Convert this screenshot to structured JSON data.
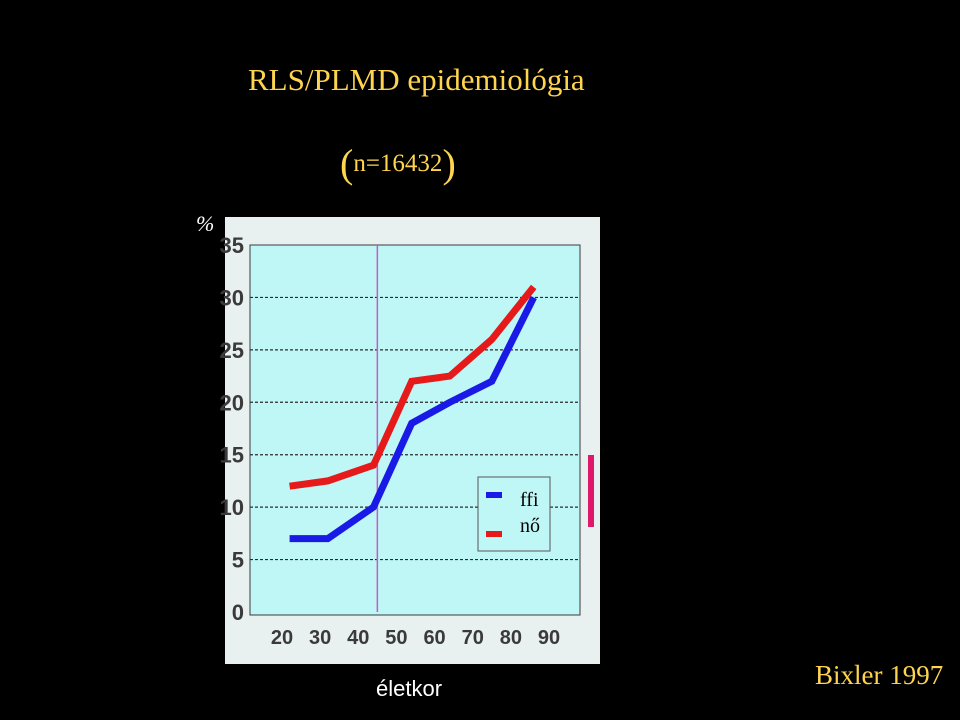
{
  "title": "RLS/PLMD epidemiológia",
  "subtitle": {
    "open": "(",
    "text": "n=16432",
    "close": ")"
  },
  "citation": "Bixler 1997",
  "colors": {
    "background": "#000000",
    "panel": "#E9F0F0",
    "plot_area": "#BFF7F7",
    "ffi": "#1A1AE6",
    "no": "#E61A1A",
    "marker_line": "#CC55CC",
    "accent_bar": "#E0186A",
    "text_yellow": "#FFD54F"
  },
  "chart_data": {
    "type": "line",
    "ylabel": "%",
    "xlabel": "életkor",
    "x": [
      20,
      30,
      40,
      50,
      60,
      70,
      80,
      90
    ],
    "x_ticks": [
      "20",
      "30",
      "40",
      "50",
      "60",
      "70",
      "80",
      "90"
    ],
    "y_ticks": [
      "0",
      "5",
      "10",
      "15",
      "20",
      "25",
      "30",
      "35"
    ],
    "xlim": [
      20,
      90
    ],
    "ylim": [
      0,
      35
    ],
    "grid": "horizontal dashed",
    "reference_line_x": 45,
    "legend_placement": "bottom-right",
    "series": [
      {
        "name": "ffi",
        "color": "#1A1AE6",
        "points": [
          [
            22,
            7
          ],
          [
            32,
            7
          ],
          [
            44,
            10
          ],
          [
            54,
            18
          ],
          [
            64,
            20
          ],
          [
            75,
            22
          ],
          [
            86,
            30
          ]
        ]
      },
      {
        "name": "nő",
        "color": "#E61A1A",
        "points": [
          [
            22,
            12
          ],
          [
            32,
            12.5
          ],
          [
            44,
            14
          ],
          [
            54,
            22
          ],
          [
            64,
            22.5
          ],
          [
            75,
            26
          ],
          [
            86,
            31
          ]
        ]
      }
    ]
  }
}
